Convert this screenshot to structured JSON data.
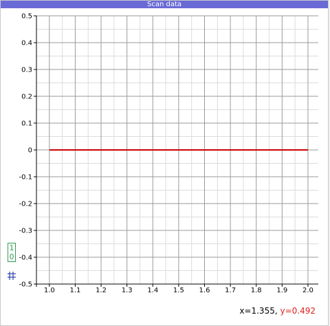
{
  "window": {
    "title": "Scan data"
  },
  "icons": {
    "binary_top": "1",
    "binary_bottom": "0",
    "grid": "grid-icon"
  },
  "readout": {
    "x_text": "x=1.355,",
    "y_text": "y=0.492"
  },
  "colors": {
    "title_bar": "#6a6ad6",
    "series": "#cc0000",
    "readout_y": "#e0201a",
    "icon_green": "#2f9b52"
  },
  "chart_data": {
    "type": "line",
    "x": [
      1.0,
      2.0
    ],
    "series": [
      {
        "values": [
          0,
          0
        ],
        "color": "#cc0000"
      }
    ],
    "xlim": [
      0.95,
      2.04
    ],
    "ylim": [
      -0.5,
      0.5
    ],
    "x_ticks": [
      1.0,
      1.1,
      1.2,
      1.3,
      1.4,
      1.5,
      1.6,
      1.7,
      1.8,
      1.9,
      2.0
    ],
    "x_tick_labels": [
      "1.0",
      "1.1",
      "1.2",
      "1.3",
      "1.4",
      "1.5",
      "1.6",
      "1.7",
      "1.8",
      "1.9",
      "2.0"
    ],
    "y_ticks": [
      0.5,
      0.4,
      0.3,
      0.2,
      0.1,
      0,
      -0.1,
      -0.2,
      -0.3,
      -0.4,
      -0.5
    ],
    "y_tick_labels": [
      "0.5",
      "0.4",
      "0.3",
      "0.2",
      "0.1",
      "0",
      "-0.1",
      "-0.2",
      "-0.3",
      "-0.4",
      "-0.5"
    ],
    "grid": true
  }
}
